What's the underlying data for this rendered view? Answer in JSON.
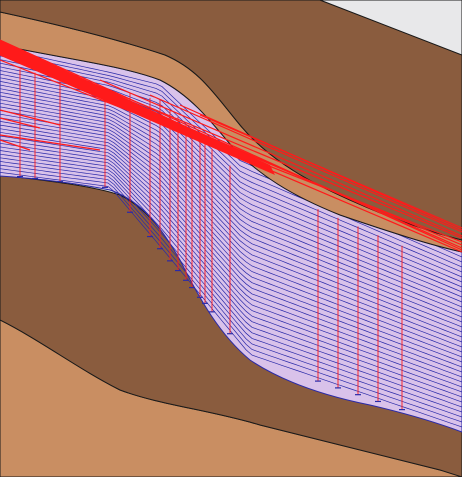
{
  "scene": {
    "colors": {
      "background": "#e8e8ea",
      "upper_layer": "#8a5c3e",
      "lower_layer": "#8a5c3e",
      "surface_band": "#c98e62",
      "bottom_band": "#c98e62",
      "strata_fill": "#d9c2ea",
      "strata_line": "#2a2aa8",
      "fault_line": "#ff1a1a",
      "outline": "#1a1a1a"
    }
  }
}
